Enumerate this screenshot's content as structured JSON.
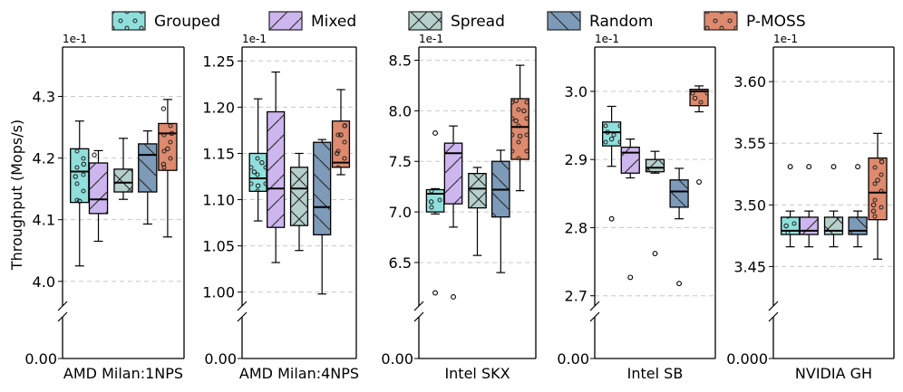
{
  "chart_data": {
    "type": "box",
    "ylabel": "Throughput (Mops/s)",
    "legend": {
      "placement": "top",
      "entries": [
        {
          "name": "Grouped",
          "color": "#8fe0dc",
          "hatch": "dots"
        },
        {
          "name": "Mixed",
          "color": "#cdb5ee",
          "hatch": "diagonal"
        },
        {
          "name": "Spread",
          "color": "#b5cfcb",
          "hatch": "cross-diagonal"
        },
        {
          "name": "Random",
          "color": "#7d9ab8",
          "hatch": "diagonal-back"
        },
        {
          "name": "P-MOSS",
          "color": "#de8a6e",
          "hatch": "dots"
        }
      ]
    },
    "panels": [
      {
        "title": "AMD Milan:1NPS",
        "scale_label": "1e-1",
        "ylim": [
          3.96,
          4.38
        ],
        "yticks": [
          "4.0",
          "4.1",
          "4.2",
          "4.3"
        ],
        "ytick_values": [
          4.0,
          4.1,
          4.2,
          4.3
        ],
        "bottom_tick": "0.00",
        "boxes": [
          {
            "series": "Grouped",
            "whislo": 4.025,
            "q1": 4.128,
            "med": 4.178,
            "q3": 4.215,
            "whishi": 4.26,
            "fliers": [],
            "points": [
              4.17,
              4.13,
              4.19
            ]
          },
          {
            "series": "Mixed",
            "whislo": 4.065,
            "q1": 4.11,
            "med": 4.133,
            "q3": 4.192,
            "whishi": 4.212,
            "fliers": [],
            "points": [
              4.205
            ]
          },
          {
            "series": "Spread",
            "whislo": 4.133,
            "q1": 4.145,
            "med": 4.16,
            "q3": 4.182,
            "whishi": 4.232,
            "fliers": [],
            "points": []
          },
          {
            "series": "Random",
            "whislo": 4.093,
            "q1": 4.145,
            "med": 4.205,
            "q3": 4.223,
            "whishi": 4.244,
            "fliers": [],
            "points": []
          },
          {
            "series": "P-MOSS",
            "whislo": 4.072,
            "q1": 4.18,
            "med": 4.24,
            "q3": 4.256,
            "whishi": 4.295,
            "fliers": [],
            "points": [
              4.19,
              4.215,
              4.24,
              4.28
            ]
          }
        ]
      },
      {
        "title": "AMD Milan:4NPS",
        "scale_label": "1e-1",
        "ylim": [
          0.985,
          1.265
        ],
        "yticks": [
          "1.00",
          "1.05",
          "1.10",
          "1.15",
          "1.20",
          "1.25"
        ],
        "ytick_values": [
          1.0,
          1.05,
          1.1,
          1.15,
          1.2,
          1.25
        ],
        "bottom_tick": "0.00",
        "boxes": [
          {
            "series": "Grouped",
            "whislo": 1.077,
            "q1": 1.109,
            "med": 1.123,
            "q3": 1.15,
            "whishi": 1.209,
            "fliers": [],
            "points": [
              1.13,
              1.115,
              1.14
            ]
          },
          {
            "series": "Mixed",
            "whislo": 1.032,
            "q1": 1.07,
            "med": 1.112,
            "q3": 1.195,
            "whishi": 1.238,
            "fliers": [],
            "points": []
          },
          {
            "series": "Spread",
            "whislo": 1.045,
            "q1": 1.072,
            "med": 1.112,
            "q3": 1.135,
            "whishi": 1.15,
            "fliers": [],
            "points": []
          },
          {
            "series": "Random",
            "whislo": 0.998,
            "q1": 1.062,
            "med": 1.092,
            "q3": 1.162,
            "whishi": 1.165,
            "fliers": [],
            "points": []
          },
          {
            "series": "P-MOSS",
            "whislo": 1.127,
            "q1": 1.135,
            "med": 1.14,
            "q3": 1.185,
            "whishi": 1.219,
            "fliers": [],
            "points": [
              1.15,
              1.17,
              1.18
            ]
          }
        ]
      },
      {
        "title": "Intel SKX",
        "scale_label": "1e-1",
        "ylim": [
          6.07,
          8.63
        ],
        "yticks": [
          "6.5",
          "7.0",
          "7.5",
          "8.0",
          "8.5"
        ],
        "ytick_values": [
          6.5,
          7.0,
          7.5,
          8.0,
          8.5
        ],
        "bottom_tick": "0.00",
        "boxes": [
          {
            "series": "Grouped",
            "whislo": 6.98,
            "q1": 7.0,
            "med": 7.18,
            "q3": 7.22,
            "whishi": 7.23,
            "fliers": [
              7.78,
              6.2
            ],
            "points": [
              7.1
            ]
          },
          {
            "series": "Mixed",
            "whislo": 6.85,
            "q1": 7.08,
            "med": 7.58,
            "q3": 7.68,
            "whishi": 7.85,
            "fliers": [
              6.16
            ],
            "points": []
          },
          {
            "series": "Spread",
            "whislo": 6.57,
            "q1": 7.04,
            "med": 7.23,
            "q3": 7.38,
            "whishi": 7.44,
            "fliers": [],
            "points": []
          },
          {
            "series": "Random",
            "whislo": 6.4,
            "q1": 6.95,
            "med": 7.22,
            "q3": 7.5,
            "whishi": 7.61,
            "fliers": [],
            "points": []
          },
          {
            "series": "P-MOSS",
            "whislo": 7.21,
            "q1": 7.52,
            "med": 7.84,
            "q3": 8.12,
            "whishi": 8.45,
            "fliers": [],
            "points": [
              7.9,
              7.75,
              8.0,
              8.1
            ]
          }
        ]
      },
      {
        "title": "Intel SB",
        "scale_label": "1e-1",
        "ylim": [
          2.685,
          3.065
        ],
        "yticks": [
          "2.7",
          "2.8",
          "2.9",
          "3.0"
        ],
        "ytick_values": [
          2.7,
          2.8,
          2.9,
          3.0
        ],
        "bottom_tick": "0.00",
        "boxes": [
          {
            "series": "Grouped",
            "whislo": 2.89,
            "q1": 2.92,
            "med": 2.94,
            "q3": 2.955,
            "whishi": 2.978,
            "fliers": [
              2.813
            ],
            "points": [
              2.94,
              2.93
            ]
          },
          {
            "series": "Mixed",
            "whislo": 2.873,
            "q1": 2.88,
            "med": 2.91,
            "q3": 2.918,
            "whishi": 2.93,
            "fliers": [
              2.727
            ],
            "points": []
          },
          {
            "series": "Spread",
            "whislo": 2.88,
            "q1": 2.882,
            "med": 2.888,
            "q3": 2.9,
            "whishi": 2.912,
            "fliers": [
              2.762
            ],
            "points": []
          },
          {
            "series": "Random",
            "whislo": 2.813,
            "q1": 2.83,
            "med": 2.853,
            "q3": 2.87,
            "whishi": 2.887,
            "fliers": [
              2.718
            ],
            "points": []
          },
          {
            "series": "P-MOSS",
            "whislo": 2.97,
            "q1": 2.979,
            "med": 3.0,
            "q3": 3.003,
            "whishi": 3.008,
            "fliers": [
              2.867
            ],
            "points": [
              2.99
            ]
          }
        ]
      },
      {
        "title": "NVIDIA GH",
        "scale_label": "1e-1",
        "ylim": [
          3.418,
          3.628
        ],
        "yticks": [
          "3.45",
          "3.50",
          "3.55",
          "3.60"
        ],
        "ytick_values": [
          3.45,
          3.5,
          3.55,
          3.6
        ],
        "bottom_tick": "0.000",
        "boxes": [
          {
            "series": "Grouped",
            "whislo": 3.466,
            "q1": 3.476,
            "med": 3.479,
            "q3": 3.49,
            "whishi": 3.495,
            "fliers": [
              3.531
            ],
            "points": [
              3.483
            ]
          },
          {
            "series": "Mixed",
            "whislo": 3.466,
            "q1": 3.476,
            "med": 3.479,
            "q3": 3.49,
            "whishi": 3.495,
            "fliers": [
              3.531
            ],
            "points": []
          },
          {
            "series": "Spread",
            "whislo": 3.466,
            "q1": 3.476,
            "med": 3.479,
            "q3": 3.49,
            "whishi": 3.495,
            "fliers": [
              3.531
            ],
            "points": []
          },
          {
            "series": "Random",
            "whislo": 3.466,
            "q1": 3.476,
            "med": 3.479,
            "q3": 3.49,
            "whishi": 3.495,
            "fliers": [
              3.531
            ],
            "points": []
          },
          {
            "series": "P-MOSS",
            "whislo": 3.456,
            "q1": 3.488,
            "med": 3.51,
            "q3": 3.538,
            "whishi": 3.558,
            "fliers": [],
            "points": [
              3.5,
              3.52,
              3.535,
              3.495
            ]
          }
        ]
      }
    ]
  }
}
